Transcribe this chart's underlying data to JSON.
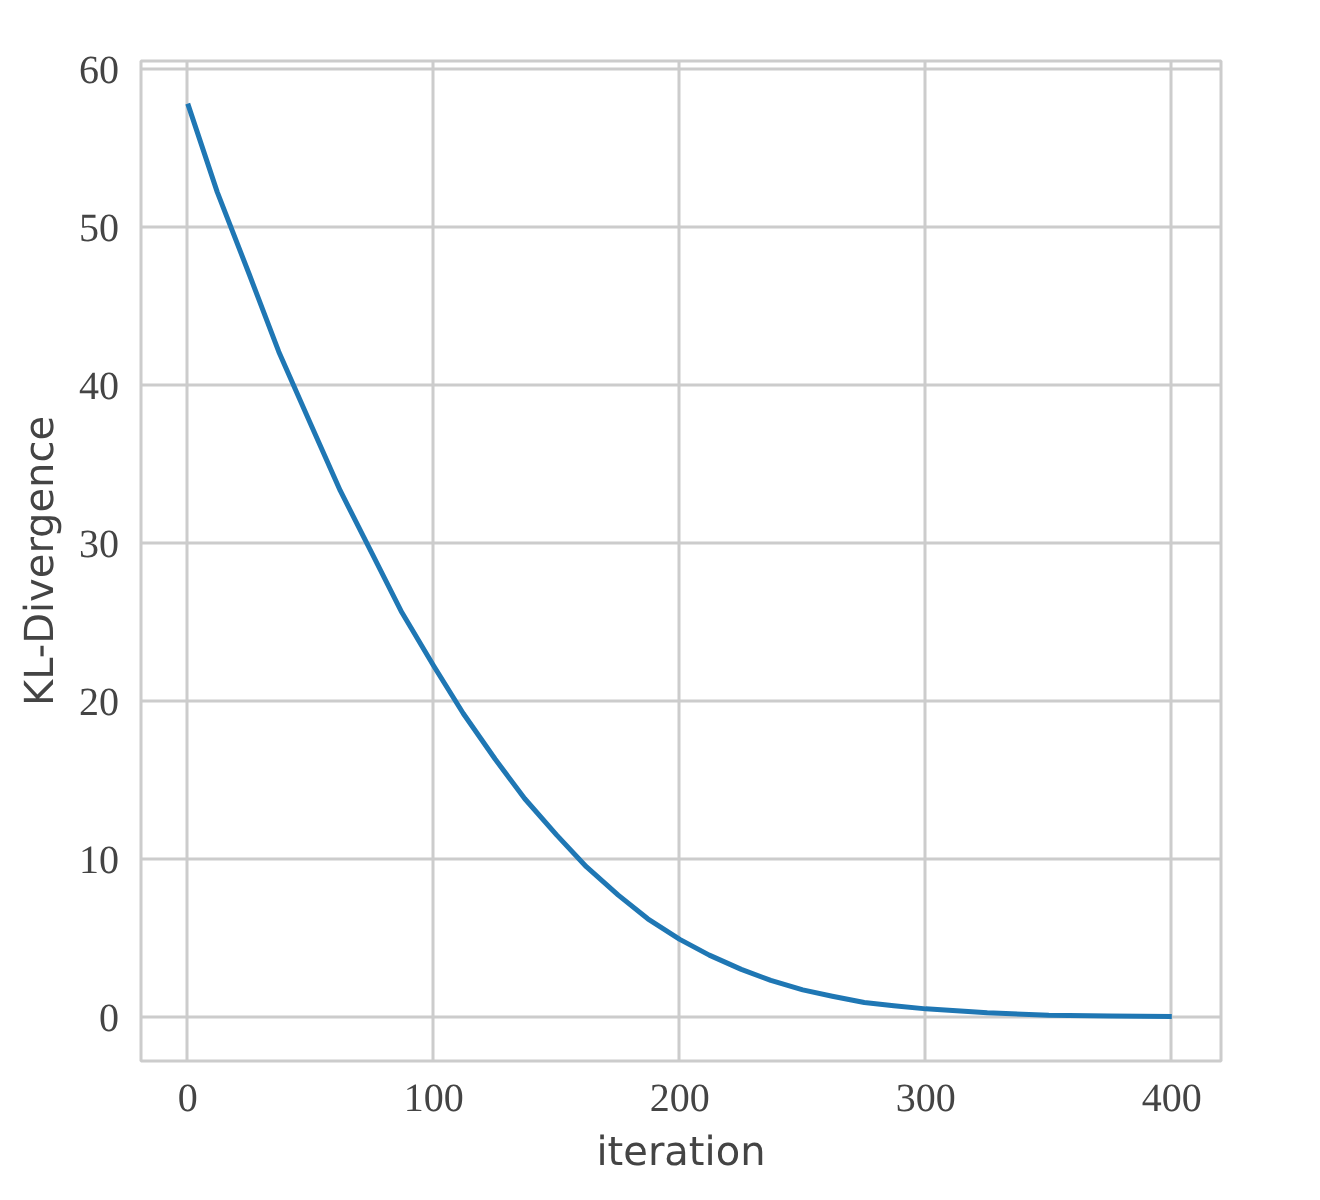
{
  "chart_data": {
    "type": "line",
    "xlabel": "iteration",
    "ylabel": "KL-Divergence",
    "x": [
      0,
      12,
      25,
      37,
      50,
      62,
      75,
      87,
      100,
      112,
      125,
      137,
      150,
      162,
      175,
      187,
      200,
      212,
      225,
      237,
      250,
      262,
      275,
      287,
      300,
      325,
      350,
      375,
      400
    ],
    "series": [
      {
        "color": "#1f77b4",
        "values": [
          57.8,
          52.2,
          47.0,
          42.1,
          37.5,
          33.3,
          29.3,
          25.6,
          22.2,
          19.2,
          16.3,
          13.8,
          11.5,
          9.5,
          7.7,
          6.2,
          4.9,
          3.9,
          3.0,
          2.3,
          1.7,
          1.3,
          0.9,
          0.7,
          0.5,
          0.25,
          0.1,
          0.05,
          0.02
        ]
      }
    ],
    "xlim": [
      -19,
      420
    ],
    "ylim": [
      -2.8,
      60.5
    ],
    "xticks": [
      0,
      100,
      200,
      300,
      400
    ],
    "yticks": [
      0,
      10,
      20,
      30,
      40,
      50,
      60
    ],
    "grid": true,
    "line_style": "solid"
  }
}
